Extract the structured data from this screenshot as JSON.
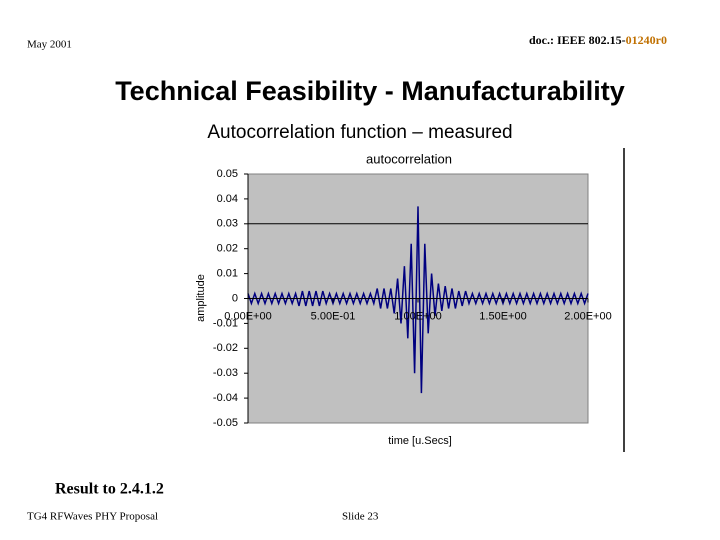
{
  "header": {
    "date": "May 2001",
    "doc_prefix": "doc.: IEEE 802.15-",
    "doc_suffix": "01240r0"
  },
  "slide_title": "Technical Feasibility - Manufacturability",
  "slide_subtitle": "Autocorrelation function – measured",
  "chart_data": {
    "type": "line",
    "title": "autocorrelation",
    "x_label": "time [u.Secs]",
    "y_label": "amplitude",
    "xlim": [
      0,
      2
    ],
    "ylim": [
      -0.05,
      0.05
    ],
    "xticks": [
      {
        "value": 0,
        "label": "0.00E+00"
      },
      {
        "value": 0.5,
        "label": "5.00E-01"
      },
      {
        "value": 1,
        "label": "1.00E+00"
      },
      {
        "value": 1.5,
        "label": "1.50E+00"
      },
      {
        "value": 2,
        "label": "2.00E+00"
      }
    ],
    "yticks": [
      0.05,
      0.04,
      0.03,
      0.02,
      0.01,
      0,
      -0.01,
      -0.02,
      -0.03,
      -0.04,
      -0.05
    ],
    "hlines": [
      0.03
    ],
    "series": [
      {
        "color": "#000080",
        "x": [
          0,
          0.02,
          0.04,
          0.06,
          0.08,
          0.1,
          0.12,
          0.14,
          0.16,
          0.18,
          0.2,
          0.22,
          0.24,
          0.26,
          0.28,
          0.3,
          0.32,
          0.34,
          0.36,
          0.38,
          0.4,
          0.42,
          0.44,
          0.46,
          0.48,
          0.5,
          0.52,
          0.54,
          0.56,
          0.58,
          0.6,
          0.62,
          0.64,
          0.66,
          0.68,
          0.7,
          0.72,
          0.74,
          0.76,
          0.78,
          0.8,
          0.82,
          0.84,
          0.86,
          0.88,
          0.9,
          0.92,
          0.94,
          0.96,
          0.98,
          1,
          1.02,
          1.04,
          1.06,
          1.08,
          1.1,
          1.12,
          1.14,
          1.16,
          1.18,
          1.2,
          1.22,
          1.24,
          1.26,
          1.28,
          1.3,
          1.32,
          1.34,
          1.36,
          1.38,
          1.4,
          1.42,
          1.44,
          1.46,
          1.48,
          1.5,
          1.52,
          1.54,
          1.56,
          1.58,
          1.6,
          1.62,
          1.64,
          1.66,
          1.68,
          1.7,
          1.72,
          1.74,
          1.76,
          1.78,
          1.8,
          1.82,
          1.84,
          1.86,
          1.88,
          1.9,
          1.92,
          1.94,
          1.96,
          1.98,
          2
        ],
        "values": [
          0.002,
          -0.002,
          0.002,
          -0.002,
          0.002,
          -0.002,
          0.002,
          -0.002,
          0.002,
          -0.002,
          0.002,
          -0.002,
          0.002,
          -0.002,
          0.002,
          -0.003,
          0.003,
          -0.003,
          0.003,
          -0.003,
          0.003,
          -0.003,
          0.003,
          -0.002,
          0.002,
          -0.002,
          0.002,
          -0.002,
          0.002,
          -0.002,
          0.002,
          -0.002,
          0.002,
          -0.002,
          0.002,
          -0.002,
          0.002,
          -0.002,
          0.004,
          -0.004,
          0.004,
          -0.004,
          0.004,
          -0.006,
          0.008,
          -0.01,
          0.013,
          -0.016,
          0.022,
          -0.03,
          0.037,
          -0.038,
          0.022,
          -0.014,
          0.01,
          -0.007,
          0.006,
          -0.005,
          0.005,
          -0.004,
          0.004,
          -0.004,
          0.003,
          -0.003,
          0.003,
          -0.002,
          0.002,
          -0.002,
          0.002,
          -0.002,
          0.002,
          -0.002,
          0.002,
          -0.002,
          0.002,
          -0.002,
          0.002,
          -0.002,
          0.002,
          -0.002,
          0.002,
          -0.002,
          0.002,
          -0.002,
          0.002,
          -0.002,
          0.002,
          -0.002,
          0.002,
          -0.002,
          0.002,
          -0.002,
          0.002,
          -0.002,
          0.002,
          -0.002,
          0.002,
          -0.002,
          0.002,
          -0.002,
          0.002
        ]
      }
    ]
  },
  "body_text": "Result to 2.4.1.2",
  "footer": {
    "left": "TG4 RFWaves PHY Proposal",
    "center": "Slide 23"
  }
}
